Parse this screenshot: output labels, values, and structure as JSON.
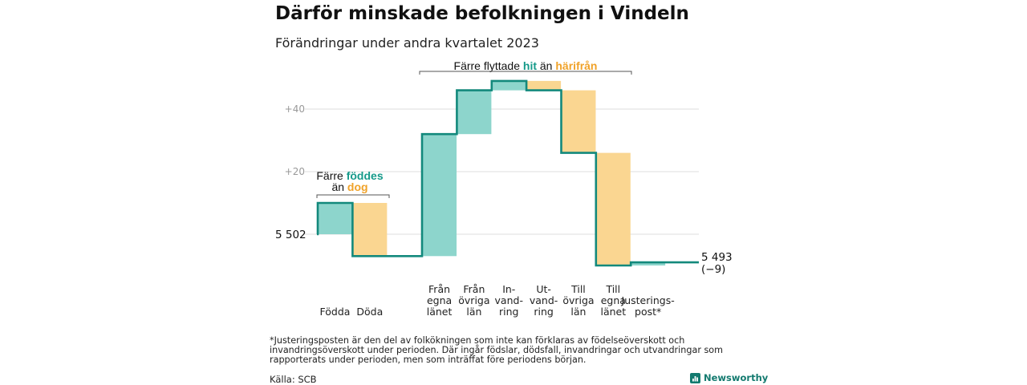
{
  "header": {
    "title": "Därför minskade befolkningen i Vindeln",
    "subtitle": "Förändringar under andra kvartalet 2023"
  },
  "colors": {
    "increase": "#8dd5cc",
    "decrease": "#fad691",
    "line": "#13897c",
    "accent_teal": "#169a8a",
    "accent_orange": "#f0a229",
    "grid": "#dddddd",
    "tick_text": "#999999"
  },
  "annotations": {
    "births": {
      "line1_prefix": "Färre ",
      "line1_highlight": "föddes",
      "line2_prefix": "än ",
      "line2_highlight": "dog"
    },
    "moves": {
      "prefix": "Färre flyttade ",
      "highlight1": "hit",
      "middle": " än ",
      "highlight2": "härifrån"
    }
  },
  "chart_data": {
    "type": "waterfall",
    "title": "Därför minskade befolkningen i Vindeln",
    "subtitle": "Förändringar under andra kvartalet 2023",
    "start": {
      "label": "5  502",
      "value": 5502
    },
    "end": {
      "label_line1": "5 493",
      "label_line2": "(−9)",
      "value": 5493
    },
    "yticks": [
      {
        "label": "+20",
        "delta": 20
      },
      {
        "label": "+40",
        "delta": 40
      }
    ],
    "categories": [
      {
        "label_lines": [
          "Födda"
        ],
        "delta": 10
      },
      {
        "label_lines": [
          "Döda"
        ],
        "delta": -17
      },
      {
        "label_lines": [
          "Från",
          "egna",
          "länet"
        ],
        "delta": 39
      },
      {
        "label_lines": [
          "Från",
          "övriga",
          "län"
        ],
        "delta": 14
      },
      {
        "label_lines": [
          "In-",
          "vand-",
          "ring"
        ],
        "delta": 3
      },
      {
        "label_lines": [
          "Ut-",
          "vand-",
          "ring"
        ],
        "delta": -3
      },
      {
        "label_lines": [
          "Till",
          "övriga",
          "län"
        ],
        "delta": -20
      },
      {
        "label_lines": [
          "Till",
          "egna",
          "länet"
        ],
        "delta": -36
      },
      {
        "label_lines": [
          "Justerings-",
          "post*"
        ],
        "delta": 1
      }
    ],
    "grid": true,
    "legend": "none"
  },
  "footnote": "*Justeringsposten är den del av folkökningen som inte kan förklaras av födelseöverskott och invandringsöverskott under perioden. Där ingår födslar, dödsfall, invandringar och utvandringar som rapporterats under perioden, men som inträffat före periodens början.",
  "source": "Källa: SCB",
  "brand": {
    "name": "Newsworthy",
    "icon": "newsworthy-logo-icon"
  }
}
